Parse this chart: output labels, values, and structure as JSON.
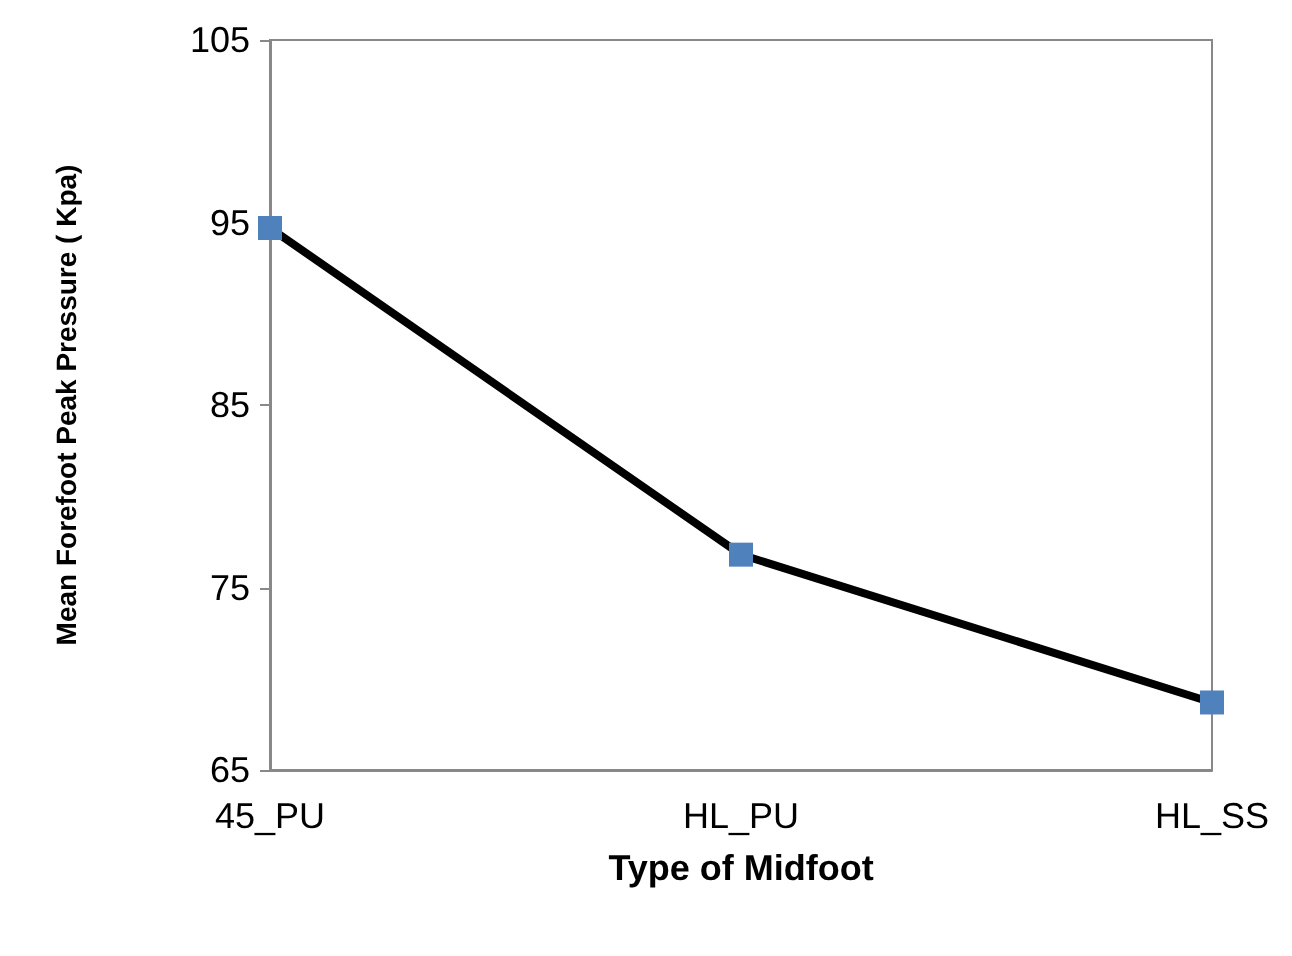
{
  "chart_data": {
    "type": "line",
    "xlabel": "Type of Midfoot",
    "ylabel": "Mean Forefoot Peak Pressure ( Kpa)",
    "categories": [
      "45_PU",
      "HL_PU",
      "HL_SS"
    ],
    "series": [
      {
        "color": "#4f81bd",
        "values": [
          94.7,
          76.8,
          68.7
        ]
      }
    ],
    "ylim": [
      65,
      105
    ],
    "yticks": [
      65,
      75,
      85,
      95,
      105
    ],
    "grid": false,
    "marker": "square",
    "line_style": "solid"
  }
}
